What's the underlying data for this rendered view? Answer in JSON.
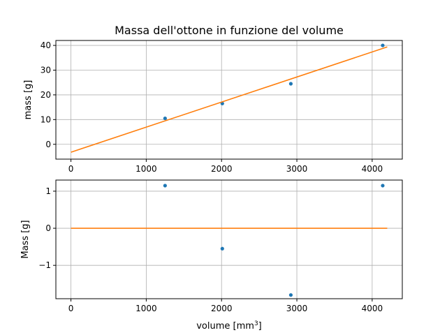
{
  "chart_data": [
    {
      "type": "scatter",
      "title": "Massa dell'ottone in funzione del volume",
      "xlabel": "",
      "ylabel": "mass [g]",
      "xlim": [
        -200,
        4400
      ],
      "ylim": [
        -6,
        42
      ],
      "xticks": [
        0,
        1000,
        2000,
        3000,
        4000
      ],
      "yticks": [
        0,
        10,
        20,
        30,
        40
      ],
      "grid": true,
      "series": [
        {
          "kind": "points",
          "color": "#1f77b4",
          "x": [
            1250,
            2010,
            2920,
            4140
          ],
          "y": [
            10.5,
            16.5,
            24.5,
            40.0
          ]
        },
        {
          "kind": "line",
          "color": "#ff7f0e",
          "x": [
            0,
            4200
          ],
          "y": [
            -3.2,
            39.4
          ]
        }
      ]
    },
    {
      "type": "scatter",
      "title": "",
      "xlabel": "volume [mm³]",
      "ylabel": "Mass [g]",
      "xlim": [
        -200,
        4400
      ],
      "ylim": [
        -1.9,
        1.3
      ],
      "xticks": [
        0,
        1000,
        2000,
        3000,
        4000
      ],
      "yticks": [
        -1,
        0,
        1
      ],
      "grid": true,
      "series": [
        {
          "kind": "points",
          "color": "#1f77b4",
          "x": [
            1250,
            2010,
            2920,
            4140
          ],
          "y": [
            1.15,
            -0.55,
            -1.8,
            1.15
          ]
        },
        {
          "kind": "line",
          "color": "#ff7f0e",
          "x": [
            0,
            4200
          ],
          "y": [
            0,
            0
          ]
        }
      ]
    }
  ]
}
